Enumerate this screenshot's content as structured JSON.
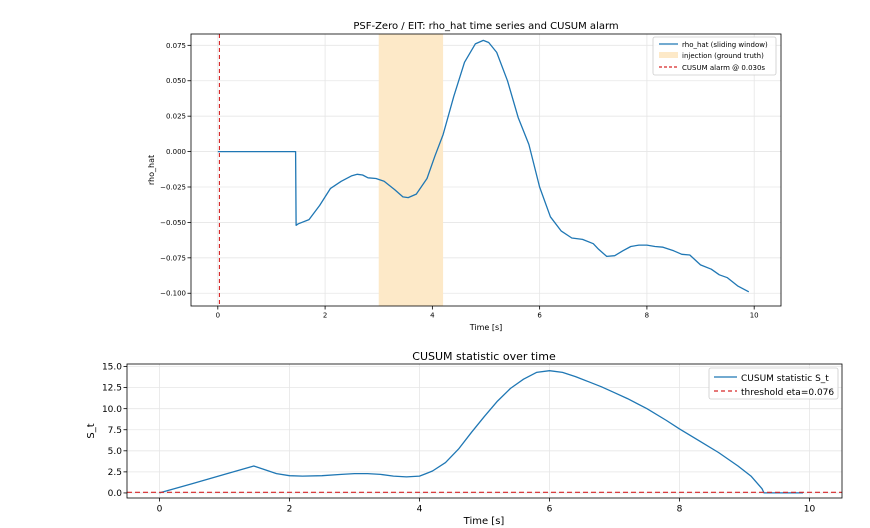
{
  "chart_data": [
    {
      "type": "line",
      "title": "PSF-Zero / EIT: rho_hat time series and CUSUM alarm",
      "xlabel": "Time [s]",
      "ylabel": "rho_hat",
      "xlim": [
        -0.5,
        10.5
      ],
      "ylim": [
        -0.109,
        0.083
      ],
      "xticks": [
        0,
        2,
        4,
        6,
        8,
        10
      ],
      "yticks": [
        -0.1,
        -0.075,
        -0.05,
        -0.025,
        0.0,
        0.025,
        0.05,
        0.075
      ],
      "xtick_labels": [
        "0",
        "2",
        "4",
        "6",
        "8",
        "10"
      ],
      "ytick_labels": [
        "−0.100",
        "−0.075",
        "−0.050",
        "−0.025",
        "0.000",
        "0.025",
        "0.050",
        "0.075"
      ],
      "grid": true,
      "legend_position": "top-right",
      "colors": {
        "series": "#1f77b4",
        "injection": "#fde9c8",
        "alarm": "#d62728"
      },
      "series": [
        {
          "name": "rho_hat (sliding window)",
          "x": [
            0.0,
            1.45,
            1.46,
            1.5,
            1.7,
            1.9,
            2.1,
            2.3,
            2.5,
            2.6,
            2.7,
            2.8,
            2.95,
            3.1,
            3.3,
            3.45,
            3.55,
            3.7,
            3.9,
            4.05,
            4.2,
            4.4,
            4.6,
            4.8,
            4.95,
            5.05,
            5.2,
            5.4,
            5.6,
            5.8,
            6.0,
            6.2,
            6.4,
            6.6,
            6.8,
            7.0,
            7.1,
            7.25,
            7.4,
            7.55,
            7.7,
            7.85,
            8.0,
            8.15,
            8.3,
            8.5,
            8.65,
            8.8,
            9.0,
            9.2,
            9.35,
            9.5,
            9.7,
            9.9
          ],
          "y": [
            0.0,
            0.0,
            -0.052,
            -0.051,
            -0.048,
            -0.038,
            -0.026,
            -0.021,
            -0.017,
            -0.016,
            -0.0165,
            -0.0185,
            -0.019,
            -0.021,
            -0.027,
            -0.032,
            -0.0325,
            -0.03,
            -0.019,
            -0.003,
            0.012,
            0.039,
            0.063,
            0.076,
            0.0785,
            0.077,
            0.07,
            0.05,
            0.024,
            0.005,
            -0.025,
            -0.046,
            -0.056,
            -0.061,
            -0.062,
            -0.065,
            -0.069,
            -0.074,
            -0.0735,
            -0.07,
            -0.067,
            -0.066,
            -0.066,
            -0.067,
            -0.0675,
            -0.07,
            -0.0725,
            -0.073,
            -0.08,
            -0.083,
            -0.087,
            -0.089,
            -0.095,
            -0.099
          ]
        }
      ],
      "injection": {
        "label": "injection (ground truth)",
        "x_start": 3.0,
        "x_end": 4.2
      },
      "alarm": {
        "label": "CUSUM alarm @ 0.030s",
        "x": 0.03
      }
    },
    {
      "type": "line",
      "title": "CUSUM statistic over time",
      "xlabel": "Time [s]",
      "ylabel": "S_t",
      "xlim": [
        -0.5,
        10.5
      ],
      "ylim": [
        -0.6,
        15.3
      ],
      "xticks": [
        0,
        2,
        4,
        6,
        8,
        10
      ],
      "yticks": [
        0.0,
        2.5,
        5.0,
        7.5,
        10.0,
        12.5,
        15.0
      ],
      "xtick_labels": [
        "0",
        "2",
        "4",
        "6",
        "8",
        "10"
      ],
      "ytick_labels": [
        "0.0",
        "2.5",
        "5.0",
        "7.5",
        "10.0",
        "12.5",
        "15.0"
      ],
      "grid": true,
      "legend_position": "top-right",
      "colors": {
        "series": "#1f77b4",
        "threshold": "#d62728"
      },
      "series": [
        {
          "name": "CUSUM statistic S_t",
          "x": [
            0.0,
            0.5,
            1.0,
            1.45,
            1.6,
            1.8,
            2.0,
            2.2,
            2.5,
            2.8,
            3.0,
            3.2,
            3.4,
            3.6,
            3.8,
            4.0,
            4.1,
            4.2,
            4.4,
            4.6,
            4.8,
            5.0,
            5.2,
            5.4,
            5.6,
            5.8,
            6.0,
            6.2,
            6.4,
            6.6,
            6.8,
            7.0,
            7.2,
            7.5,
            7.8,
            8.0,
            8.3,
            8.6,
            8.9,
            9.1,
            9.27,
            9.3,
            9.6,
            9.9
          ],
          "y": [
            0.0,
            1.1,
            2.2,
            3.2,
            2.8,
            2.3,
            2.05,
            2.0,
            2.05,
            2.2,
            2.3,
            2.3,
            2.2,
            2.0,
            1.9,
            2.0,
            2.3,
            2.6,
            3.6,
            5.2,
            7.2,
            9.1,
            10.9,
            12.4,
            13.5,
            14.3,
            14.5,
            14.3,
            13.8,
            13.2,
            12.6,
            11.9,
            11.2,
            10.0,
            8.6,
            7.6,
            6.2,
            4.8,
            3.2,
            2.0,
            0.5,
            0.0,
            0.0,
            0.0
          ]
        }
      ],
      "threshold": {
        "label": "threshold eta=0.076",
        "value": 0.076
      }
    }
  ]
}
